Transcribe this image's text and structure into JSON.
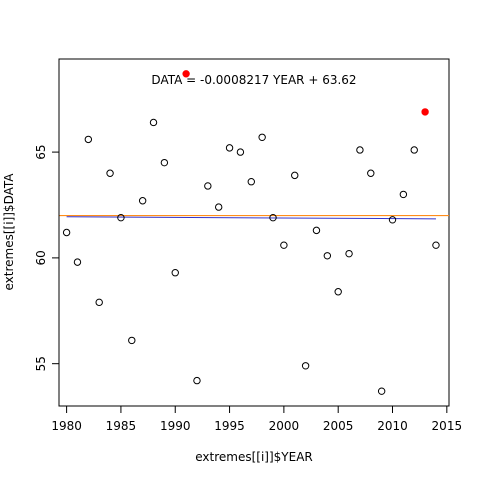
{
  "chart_data": {
    "type": "scatter",
    "xlabel": "extremes[[i]]$YEAR",
    "ylabel": "extremes[[i]]$DATA",
    "xlim": [
      1979.3,
      2015.2
    ],
    "ylim": [
      53,
      69.4
    ],
    "xticks": [
      1980,
      1985,
      1990,
      1995,
      2000,
      2005,
      2010,
      2015
    ],
    "yticks": [
      55,
      60,
      65
    ],
    "annotation": "DATA = -0.0008217 YEAR + 63.62",
    "points": [
      {
        "x": 1980,
        "y": 61.2
      },
      {
        "x": 1981,
        "y": 59.8
      },
      {
        "x": 1982,
        "y": 65.6
      },
      {
        "x": 1983,
        "y": 57.9
      },
      {
        "x": 1984,
        "y": 64.0
      },
      {
        "x": 1985,
        "y": 61.9
      },
      {
        "x": 1986,
        "y": 56.1
      },
      {
        "x": 1987,
        "y": 62.7
      },
      {
        "x": 1988,
        "y": 66.4
      },
      {
        "x": 1989,
        "y": 64.5
      },
      {
        "x": 1990,
        "y": 59.3
      },
      {
        "x": 1992,
        "y": 54.2
      },
      {
        "x": 1993,
        "y": 63.4
      },
      {
        "x": 1994,
        "y": 62.4
      },
      {
        "x": 1995,
        "y": 65.2
      },
      {
        "x": 1996,
        "y": 65.0
      },
      {
        "x": 1997,
        "y": 63.6
      },
      {
        "x": 1998,
        "y": 65.7
      },
      {
        "x": 1999,
        "y": 61.9
      },
      {
        "x": 2000,
        "y": 60.6
      },
      {
        "x": 2001,
        "y": 63.9
      },
      {
        "x": 2002,
        "y": 54.9
      },
      {
        "x": 2003,
        "y": 61.3
      },
      {
        "x": 2004,
        "y": 60.1
      },
      {
        "x": 2005,
        "y": 58.4
      },
      {
        "x": 2006,
        "y": 60.2
      },
      {
        "x": 2007,
        "y": 65.1
      },
      {
        "x": 2008,
        "y": 64.0
      },
      {
        "x": 2009,
        "y": 53.7
      },
      {
        "x": 2010,
        "y": 61.8
      },
      {
        "x": 2011,
        "y": 63.0
      },
      {
        "x": 2012,
        "y": 65.1
      },
      {
        "x": 2014,
        "y": 60.6
      }
    ],
    "highlighted_points": [
      {
        "x": 1991,
        "y": 68.7
      },
      {
        "x": 2013,
        "y": 66.9
      }
    ],
    "regression_line": {
      "slope": -0.0008217,
      "intercept": 63.62
    },
    "mean_line_y": 62.0,
    "colors": {
      "points_stroke": "#000000",
      "highlight": "#ff0000",
      "regression": "#3333cc",
      "mean_line": "#ff8c1a"
    }
  }
}
